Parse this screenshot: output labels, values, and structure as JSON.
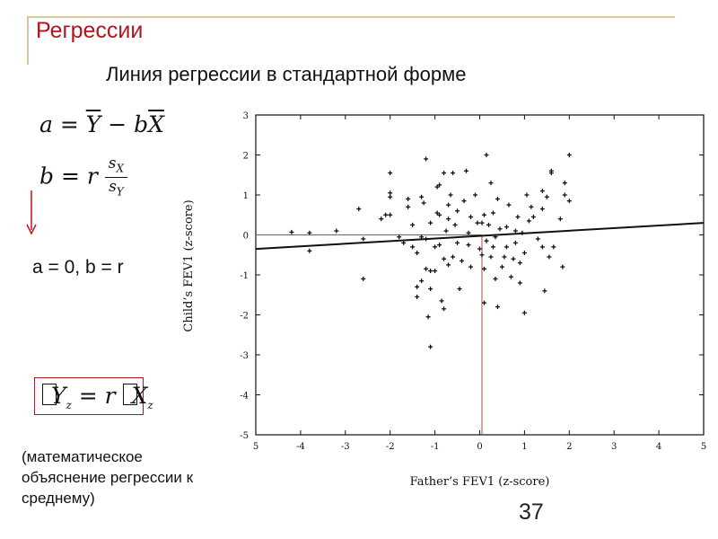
{
  "slide": {
    "title": "Регрессии",
    "subtitle": "Линия регрессии в стандартной форме",
    "ab_result": "a = 0, b = r",
    "note_lines": [
      "(математическое",
      "объяснение регрессии к",
      "среднему)"
    ],
    "page_number": "37",
    "title_color": "#b4141c",
    "arrow_color": "#c0141c"
  },
  "chart_data": {
    "type": "scatter",
    "title": "",
    "xlabel": "Father’s FEV1 (z-score)",
    "ylabel": "Child’s FEV1 (z-score)",
    "xlim": [
      -5,
      5
    ],
    "ylim": [
      -5,
      3
    ],
    "x_ticks": [
      "5",
      "-4",
      "-3",
      "-2",
      "-1",
      "0",
      "1",
      "2",
      "3",
      "4",
      "5"
    ],
    "y_ticks": [
      "3",
      "2",
      "1",
      "0",
      "-1",
      "-2",
      "-3",
      "-4",
      "-5"
    ],
    "regression_line": {
      "x": [
        -5,
        5
      ],
      "y": [
        -0.35,
        0.3
      ]
    },
    "reference_lines": {
      "color": "#c04040",
      "horizontal_y": 0,
      "vertical_x": 0.05
    },
    "points": [
      [
        -4.2,
        0.07
      ],
      [
        -3.8,
        0.05
      ],
      [
        -3.8,
        -0.4
      ],
      [
        -3.2,
        0.1
      ],
      [
        -2.6,
        -0.1
      ],
      [
        -2.6,
        -1.1
      ],
      [
        -2.7,
        0.65
      ],
      [
        -2.2,
        0.4
      ],
      [
        -2.1,
        0.5
      ],
      [
        -2.0,
        0.95
      ],
      [
        -2.0,
        1.05
      ],
      [
        -2.0,
        1.55
      ],
      [
        -2.0,
        0.5
      ],
      [
        -1.8,
        -0.05
      ],
      [
        -1.7,
        -0.2
      ],
      [
        -1.6,
        0.9
      ],
      [
        -1.6,
        0.7
      ],
      [
        -1.5,
        0.25
      ],
      [
        -1.5,
        -0.3
      ],
      [
        -1.4,
        -0.45
      ],
      [
        -1.4,
        -1.3
      ],
      [
        -1.4,
        -1.55
      ],
      [
        -1.3,
        -1.15
      ],
      [
        -1.3,
        -0.05
      ],
      [
        -1.3,
        0.95
      ],
      [
        -1.2,
        -0.85
      ],
      [
        -1.2,
        -0.1
      ],
      [
        -1.25,
        0.8
      ],
      [
        -1.2,
        1.9
      ],
      [
        -1.15,
        -2.05
      ],
      [
        -1.1,
        -2.8
      ],
      [
        -1.1,
        -1.35
      ],
      [
        -1.1,
        -0.9
      ],
      [
        -1.1,
        0.3
      ],
      [
        -1.0,
        -0.3
      ],
      [
        -1.0,
        -0.9
      ],
      [
        -0.95,
        0.55
      ],
      [
        -0.95,
        1.2
      ],
      [
        -0.9,
        1.25
      ],
      [
        -0.9,
        0.5
      ],
      [
        -0.9,
        -0.25
      ],
      [
        -0.85,
        -1.65
      ],
      [
        -0.8,
        -1.85
      ],
      [
        -0.8,
        -0.6
      ],
      [
        -0.8,
        1.55
      ],
      [
        -0.75,
        0.1
      ],
      [
        -0.7,
        -0.75
      ],
      [
        -0.7,
        0.4
      ],
      [
        -0.7,
        0.75
      ],
      [
        -0.65,
        1.0
      ],
      [
        -0.6,
        -0.55
      ],
      [
        -0.6,
        1.55
      ],
      [
        -0.55,
        0.25
      ],
      [
        -0.5,
        -0.2
      ],
      [
        -0.5,
        0.6
      ],
      [
        -0.45,
        -1.35
      ],
      [
        -0.4,
        -0.65
      ],
      [
        -0.35,
        0.85
      ],
      [
        -0.3,
        1.6
      ],
      [
        -0.25,
        0.05
      ],
      [
        -0.25,
        -0.25
      ],
      [
        -0.2,
        0.45
      ],
      [
        -0.2,
        -0.8
      ],
      [
        -0.1,
        1.0
      ],
      [
        -0.05,
        0.3
      ],
      [
        0.0,
        -0.35
      ],
      [
        0.05,
        -0.5
      ],
      [
        0.05,
        0.3
      ],
      [
        0.1,
        -0.85
      ],
      [
        0.1,
        0.5
      ],
      [
        0.1,
        -1.7
      ],
      [
        0.15,
        -0.15
      ],
      [
        0.15,
        2.0
      ],
      [
        0.2,
        0.25
      ],
      [
        0.25,
        -0.55
      ],
      [
        0.25,
        1.3
      ],
      [
        0.3,
        -0.3
      ],
      [
        0.3,
        0.55
      ],
      [
        0.35,
        -0.05
      ],
      [
        0.35,
        -1.1
      ],
      [
        0.4,
        -1.8
      ],
      [
        0.4,
        0.9
      ],
      [
        0.45,
        0.15
      ],
      [
        0.5,
        -0.8
      ],
      [
        0.55,
        -0.55
      ],
      [
        0.6,
        0.2
      ],
      [
        0.6,
        -0.3
      ],
      [
        0.65,
        0.75
      ],
      [
        0.7,
        -1.05
      ],
      [
        0.75,
        -0.6
      ],
      [
        0.8,
        0.1
      ],
      [
        0.8,
        -0.2
      ],
      [
        0.85,
        0.45
      ],
      [
        0.9,
        -0.7
      ],
      [
        0.9,
        -1.2
      ],
      [
        0.95,
        0.05
      ],
      [
        1.0,
        -0.45
      ],
      [
        1.0,
        -1.95
      ],
      [
        1.05,
        1.0
      ],
      [
        1.1,
        0.35
      ],
      [
        1.15,
        0.7
      ],
      [
        1.2,
        0.45
      ],
      [
        1.3,
        -0.1
      ],
      [
        1.4,
        1.1
      ],
      [
        1.4,
        0.65
      ],
      [
        1.4,
        -0.3
      ],
      [
        1.45,
        -1.4
      ],
      [
        1.5,
        0.95
      ],
      [
        1.55,
        -0.55
      ],
      [
        1.6,
        1.55
      ],
      [
        1.6,
        1.6
      ],
      [
        1.65,
        -0.3
      ],
      [
        1.8,
        0.4
      ],
      [
        1.85,
        -0.8
      ],
      [
        1.9,
        1.0
      ],
      [
        1.9,
        1.3
      ],
      [
        2.0,
        2.0
      ],
      [
        2.0,
        0.85
      ]
    ]
  }
}
